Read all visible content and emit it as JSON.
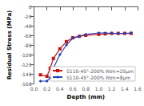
{
  "chart_data": {
    "type": "line",
    "xlabel": "Depth (mm)",
    "ylabel": "Residual Stress (MPa)",
    "series": [
      {
        "name": "S110-45°-200% Rtm=25μm",
        "color": "#cc1111",
        "marker": "square",
        "x": [
          0.1,
          0.2,
          0.25,
          0.3,
          0.4,
          0.5,
          0.6,
          0.7,
          0.8,
          1.0,
          1.1,
          1.2,
          1.3,
          1.4,
          1.5
        ],
        "values": [
          -142,
          -145,
          -128,
          -108,
          -88,
          -73,
          -65,
          -62,
          -60,
          -58,
          -57,
          -56,
          -56,
          -56,
          -56
        ]
      },
      {
        "name": "S110-45°-200% Rtm=8μm",
        "color": "#2244bb",
        "marker": "diamond",
        "x": [
          0.1,
          0.2,
          0.25,
          0.3,
          0.4,
          0.5,
          0.6,
          0.7,
          0.8,
          1.0,
          1.1,
          1.2,
          1.3,
          1.4,
          1.5
        ],
        "values": [
          -155,
          -155,
          -148,
          -128,
          -100,
          -80,
          -66,
          -62,
          -58,
          -55,
          -55,
          -56,
          -56,
          -56,
          -55
        ]
      }
    ],
    "xlim": [
      0.0,
      1.6
    ],
    "ylim": [
      -160,
      0
    ],
    "xticks": [
      {
        "value": 0,
        "label": "0.0"
      },
      0.2,
      0.4,
      0.6,
      0.8,
      {
        "value": 1,
        "label": "1.0"
      },
      1.2,
      1.4,
      1.6
    ],
    "yticks": [
      0,
      -20,
      -40,
      -60,
      -80,
      -100,
      -120,
      -140,
      -160
    ],
    "grid": false,
    "legend": "lower right"
  }
}
